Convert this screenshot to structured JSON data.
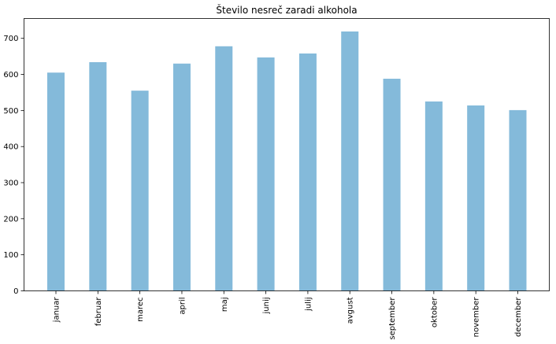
{
  "chart_data": {
    "type": "bar",
    "title": "Število nesreč zaradi alkohola",
    "xlabel": "",
    "ylabel": "",
    "categories": [
      "januar",
      "februar",
      "marec",
      "april",
      "maj",
      "junij",
      "julij",
      "avgust",
      "september",
      "oktober",
      "november",
      "december"
    ],
    "values": [
      605,
      634,
      555,
      630,
      678,
      647,
      658,
      719,
      588,
      525,
      514,
      501
    ],
    "ylim": [
      0,
      755
    ],
    "yticks": [
      0,
      100,
      200,
      300,
      400,
      500,
      600,
      700
    ],
    "grid": false,
    "bar_color": "#84bada"
  }
}
